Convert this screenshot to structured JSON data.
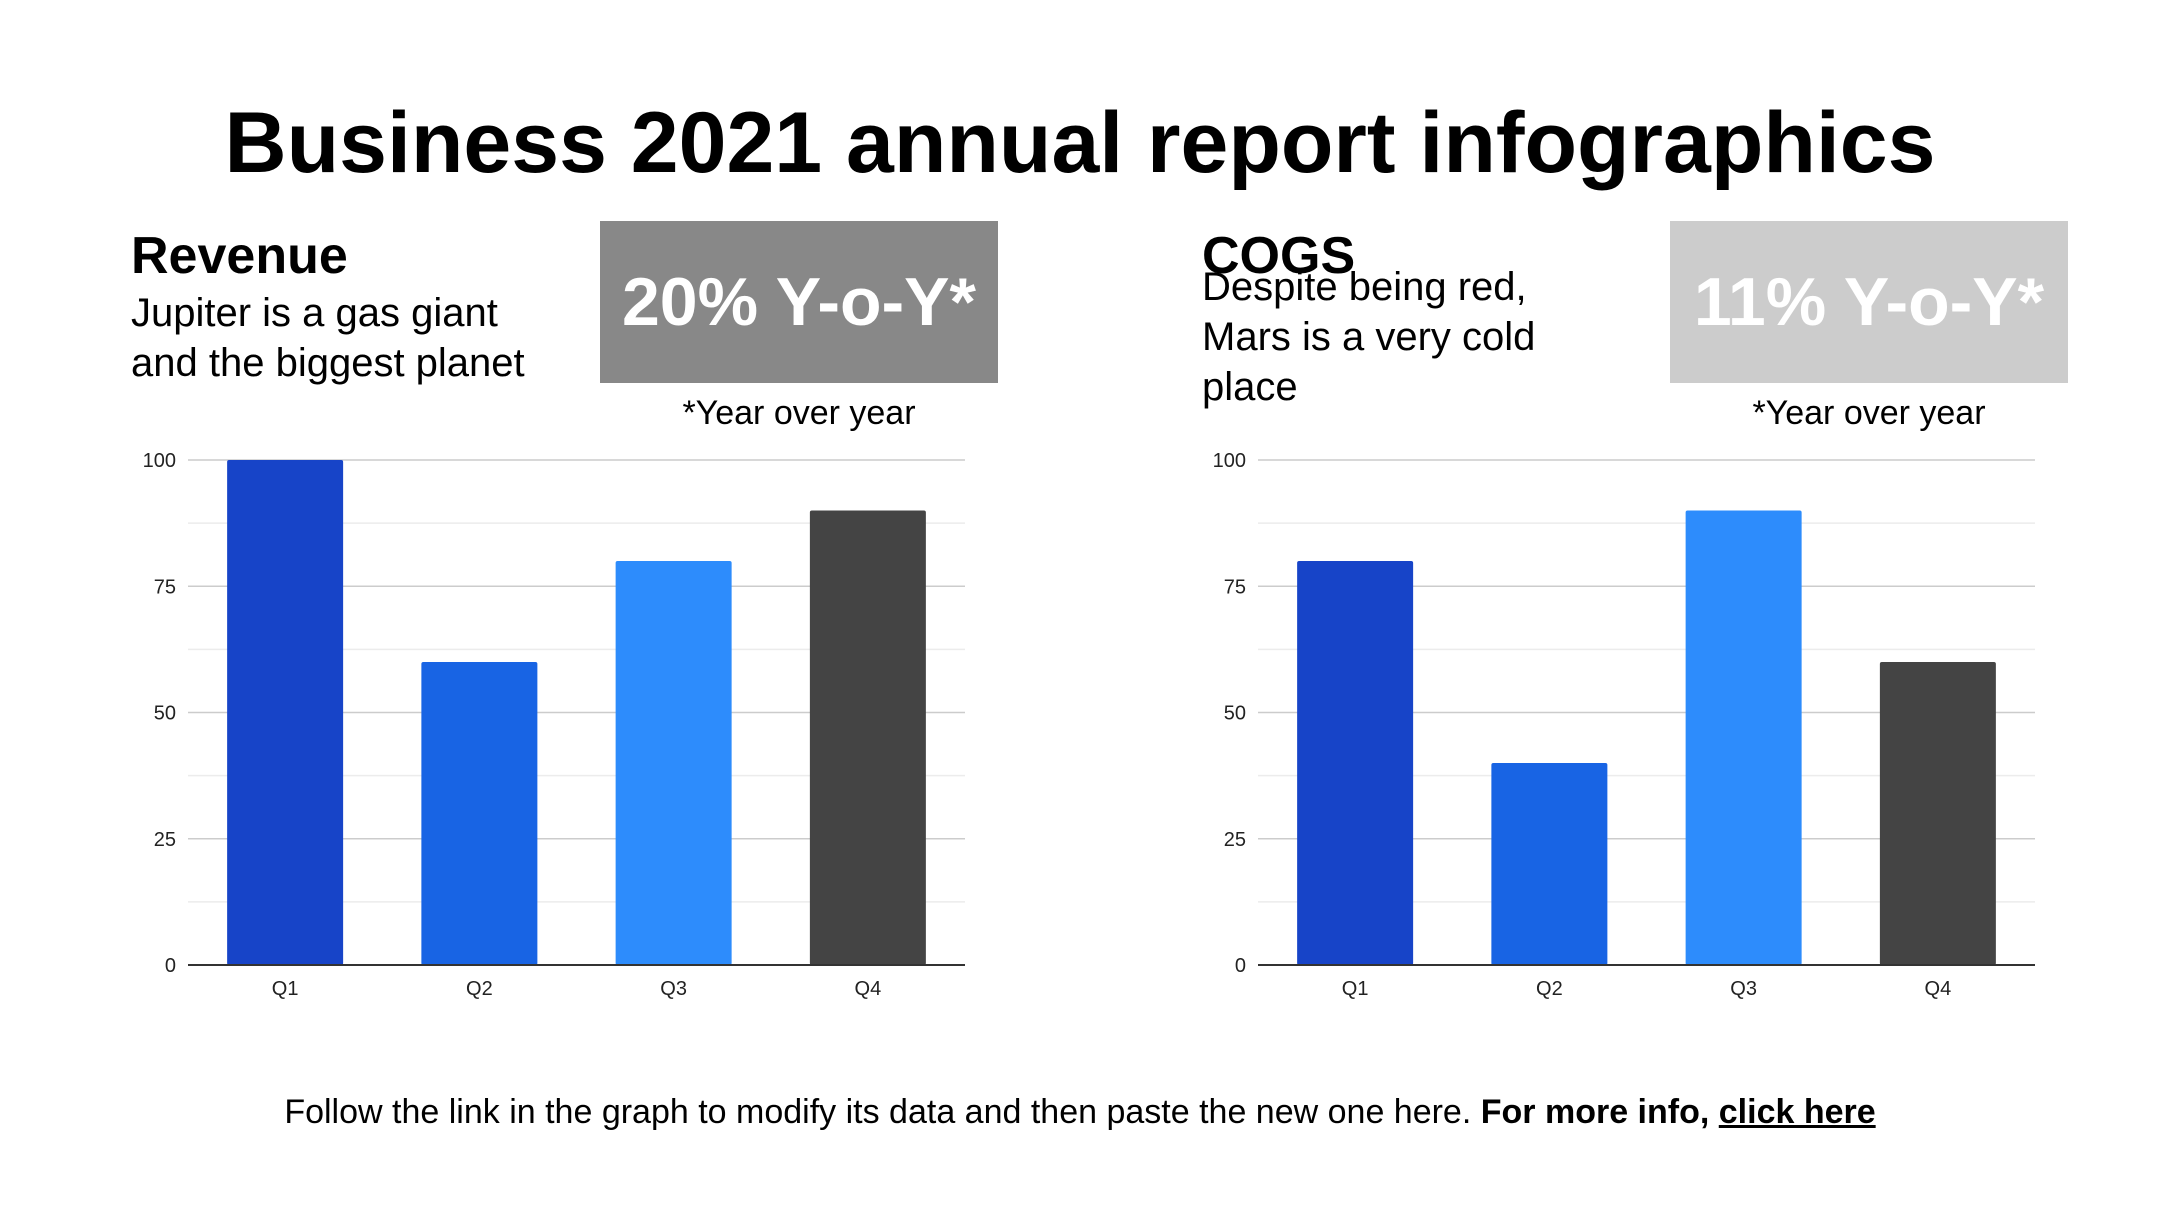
{
  "title": "Business 2021 annual report infographics",
  "sections": [
    {
      "heading": "Revenue",
      "description": "Jupiter is a gas giant and the biggest planet",
      "yoy_value": "20% Y-o-Y*",
      "yoy_note": "*Year over year",
      "yoy_color": "#888888"
    },
    {
      "heading": "COGS",
      "description": "Despite being red, Mars is a very cold place",
      "yoy_value": "11% Y-o-Y*",
      "yoy_note": "*Year over year",
      "yoy_color": "#cccccc"
    }
  ],
  "colors": {
    "q1": "#1744c8",
    "q2": "#1864e4",
    "q3": "#2d8cfc",
    "q4": "#444444",
    "grid_major": "#cccccc",
    "grid_minor": "#ececec",
    "axis": "#333333"
  },
  "chart_data": [
    {
      "type": "bar",
      "title": "Revenue",
      "categories": [
        "Q1",
        "Q2",
        "Q3",
        "Q4"
      ],
      "values": [
        100,
        60,
        80,
        90
      ],
      "xlabel": "",
      "ylabel": "",
      "ylim": [
        0,
        100
      ],
      "yticks": [
        "0",
        "25",
        "50",
        "75",
        "100"
      ],
      "grid": true
    },
    {
      "type": "bar",
      "title": "COGS",
      "categories": [
        "Q1",
        "Q2",
        "Q3",
        "Q4"
      ],
      "values": [
        80,
        40,
        90,
        60
      ],
      "xlabel": "",
      "ylabel": "",
      "ylim": [
        0,
        100
      ],
      "yticks": [
        "0",
        "25",
        "50",
        "75",
        "100"
      ],
      "grid": true
    }
  ],
  "footer": {
    "text": "Follow the link in the graph to modify its data and then paste the new one here.",
    "bold_text": "For more info,",
    "link_text": "click here"
  }
}
